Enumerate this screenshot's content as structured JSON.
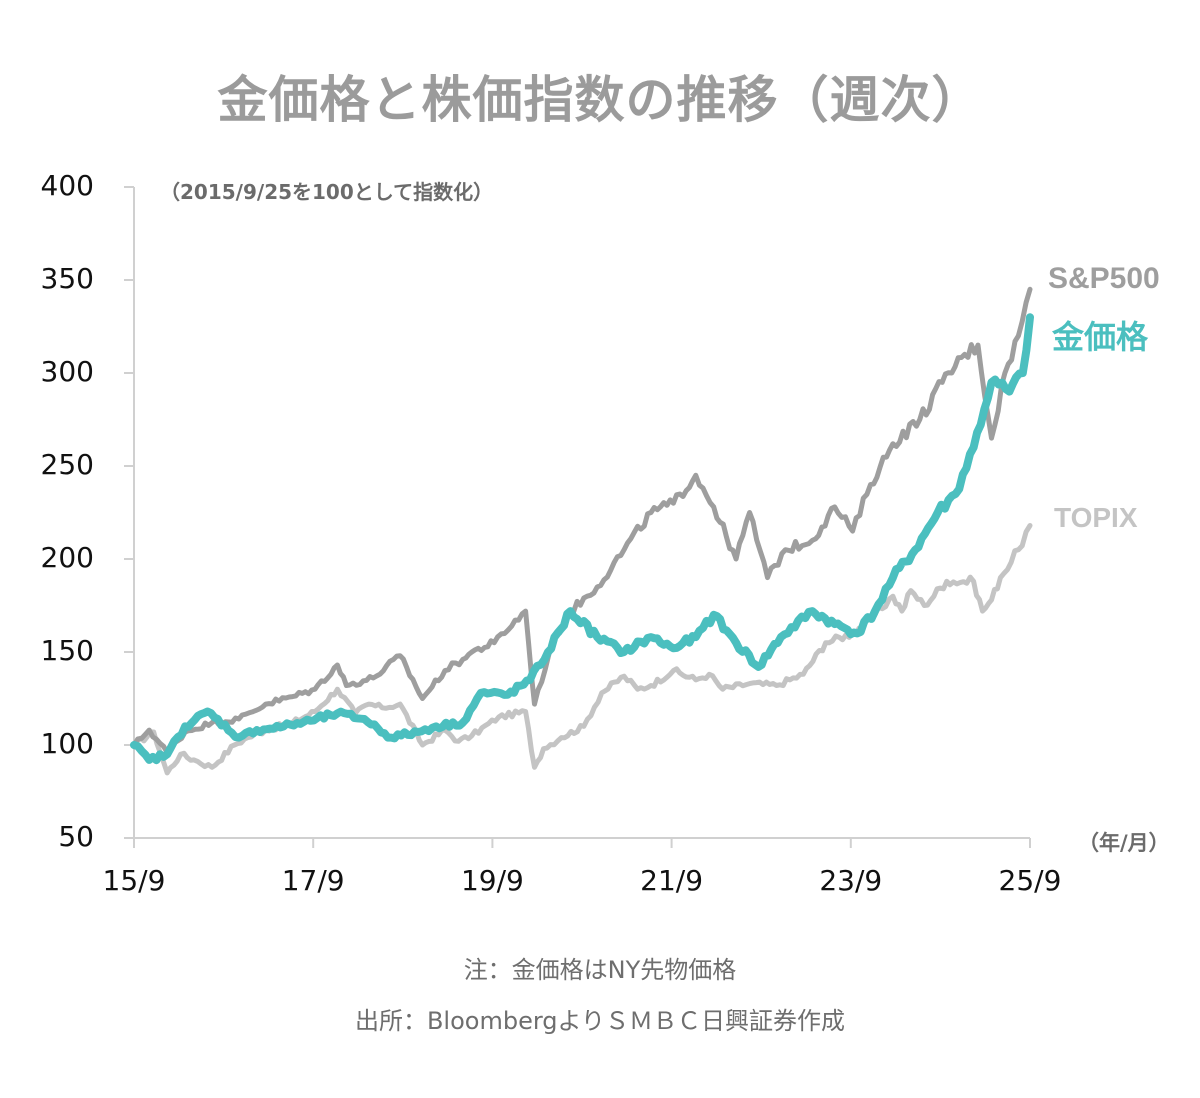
{
  "chart_data": {
    "type": "line",
    "title": "金価格と株価指数の推移（週次）",
    "subtitle": "（2015/9/25を100として指数化）",
    "xlabel": "（年/月）",
    "ylabel": "",
    "ylim": [
      50,
      400
    ],
    "xlim": [
      2015.73,
      2025.73
    ],
    "yticks": [
      50,
      100,
      150,
      200,
      250,
      300,
      350,
      400
    ],
    "ytick_labels": [
      "50",
      "100",
      "150",
      "200",
      "250",
      "300",
      "350",
      "400"
    ],
    "xticks": [
      2015.73,
      2017.73,
      2019.73,
      2021.73,
      2023.73,
      2025.73
    ],
    "xtick_labels": [
      "15/9",
      "17/9",
      "19/9",
      "21/9",
      "23/9",
      "25/9"
    ],
    "grid": false,
    "legend_placement": "right (direct labels at line ends)",
    "series": [
      {
        "name": "TOPIX",
        "color": "#c4c4c4",
        "x": [
          2015.73,
          2015.95,
          2016.1,
          2016.25,
          2016.4,
          2016.6,
          2016.85,
          2017.0,
          2017.2,
          2017.5,
          2017.75,
          2018.0,
          2018.2,
          2018.35,
          2018.5,
          2018.7,
          2018.95,
          2019.2,
          2019.35,
          2019.5,
          2019.8,
          2020.1,
          2020.2,
          2020.3,
          2020.5,
          2020.75,
          2020.95,
          2021.2,
          2021.35,
          2021.5,
          2021.75,
          2022.0,
          2022.15,
          2022.3,
          2022.6,
          2022.9,
          2023.2,
          2023.45,
          2023.75,
          2024.0,
          2024.2,
          2024.3,
          2024.4,
          2024.55,
          2024.8,
          2025.1,
          2025.2,
          2025.3,
          2025.4,
          2025.6,
          2025.73
        ],
        "values": [
          100,
          107,
          85,
          95,
          92,
          88,
          100,
          104,
          108,
          112,
          118,
          130,
          117,
          122,
          120,
          122,
          100,
          108,
          102,
          105,
          115,
          118,
          88,
          98,
          104,
          110,
          128,
          137,
          130,
          132,
          140,
          135,
          138,
          130,
          133,
          132,
          138,
          155,
          160,
          170,
          180,
          172,
          183,
          175,
          188,
          188,
          172,
          178,
          190,
          205,
          218
        ]
      },
      {
        "name": "S&P500",
        "color": "#9e9e9e",
        "x": [
          2015.73,
          2015.9,
          2016.1,
          2016.3,
          2016.6,
          2016.9,
          2017.2,
          2017.5,
          2017.75,
          2018.0,
          2018.1,
          2018.4,
          2018.7,
          2018.95,
          2019.2,
          2019.4,
          2019.5,
          2019.75,
          2020.1,
          2020.2,
          2020.4,
          2020.6,
          2020.9,
          2021.2,
          2021.5,
          2021.75,
          2022.0,
          2022.2,
          2022.45,
          2022.6,
          2022.8,
          2023.0,
          2023.3,
          2023.55,
          2023.75,
          2023.95,
          2024.2,
          2024.5,
          2024.75,
          2025.0,
          2025.15,
          2025.3,
          2025.45,
          2025.6,
          2025.73
        ],
        "values": [
          100,
          108,
          96,
          107,
          112,
          114,
          122,
          126,
          130,
          143,
          132,
          136,
          148,
          125,
          140,
          146,
          150,
          155,
          172,
          122,
          155,
          172,
          185,
          205,
          225,
          230,
          245,
          228,
          200,
          225,
          190,
          205,
          210,
          228,
          215,
          240,
          262,
          275,
          295,
          310,
          315,
          265,
          300,
          320,
          345
        ]
      },
      {
        "name": "金価格",
        "color": "#4bbfbf",
        "x": [
          2015.73,
          2015.9,
          2016.1,
          2016.3,
          2016.55,
          2016.9,
          2017.1,
          2017.4,
          2017.7,
          2018.0,
          2018.3,
          2018.6,
          2018.9,
          2019.1,
          2019.4,
          2019.6,
          2019.9,
          2020.15,
          2020.35,
          2020.6,
          2020.9,
          2021.2,
          2021.5,
          2021.75,
          2022.0,
          2022.2,
          2022.45,
          2022.7,
          2022.95,
          2023.3,
          2023.55,
          2023.8,
          2024.0,
          2024.2,
          2024.45,
          2024.7,
          2024.9,
          2025.1,
          2025.3,
          2025.5,
          2025.65,
          2025.73
        ],
        "values": [
          100,
          92,
          95,
          110,
          118,
          104,
          108,
          110,
          113,
          117,
          114,
          104,
          107,
          110,
          112,
          128,
          127,
          135,
          150,
          172,
          158,
          150,
          158,
          152,
          158,
          170,
          155,
          142,
          158,
          172,
          165,
          160,
          172,
          190,
          205,
          225,
          235,
          260,
          295,
          290,
          300,
          330
        ]
      }
    ]
  },
  "legend_labels": {
    "sp500": "S&P500",
    "gold": "金価格",
    "topix": "TOPIX"
  },
  "footnotes": {
    "note": "注：金価格はNY先物価格",
    "source": "出所：BloombergよりＳＭＢＣ日興証券作成"
  },
  "colors": {
    "title": "#9b9b9b",
    "axis": "#d0d0d0"
  }
}
